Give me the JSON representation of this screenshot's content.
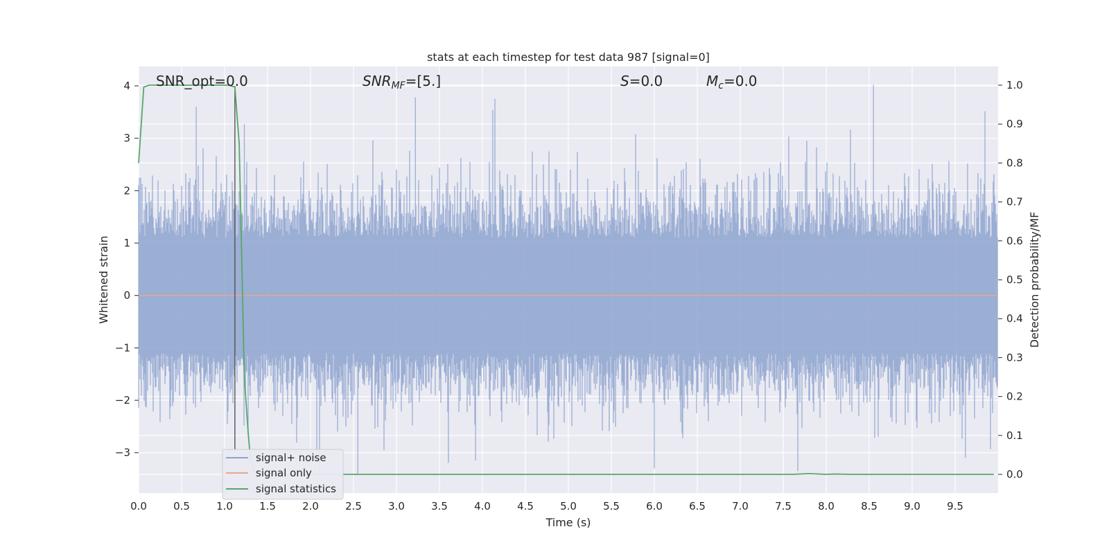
{
  "chart_data": {
    "type": "line",
    "title": "stats at each timestep for test data 987 [signal=0]",
    "xlabel": "Time (s)",
    "ylabel_left": "Whitened strain",
    "ylabel_right": "Detection probability/MF",
    "xlim": [
      0,
      10
    ],
    "ylim_left": [
      -3.77,
      4.37
    ],
    "ylim_right": [
      -0.048,
      1.048
    ],
    "x_ticks": [
      "0.0",
      "0.5",
      "1.0",
      "1.5",
      "2.0",
      "2.5",
      "3.0",
      "3.5",
      "4.0",
      "4.5",
      "5.0",
      "5.5",
      "6.0",
      "6.5",
      "7.0",
      "7.5",
      "8.0",
      "8.5",
      "9.0",
      "9.5"
    ],
    "y_left_ticks": [
      "4",
      "3",
      "2",
      "1",
      "0",
      "−1",
      "−2",
      "−3"
    ],
    "y_right_ticks": [
      "1.0",
      "0.9",
      "0.8",
      "0.7",
      "0.6",
      "0.5",
      "0.4",
      "0.3",
      "0.2",
      "0.1",
      "0.0"
    ],
    "grid": true,
    "legend_position": "lower-left",
    "annotations": {
      "snr_opt": "SNR_opt=0.0",
      "snr_mf_main": "SNR",
      "snr_mf_sub": "MF",
      "snr_mf_value": "=[5.]",
      "s_main": "S",
      "s_value": "=0.0",
      "mc_main": "M",
      "mc_sub": "c",
      "mc_value": "=0.0"
    },
    "vertical_marker_x": 1.12,
    "series": [
      {
        "name": "signal+ noise",
        "axis": "left",
        "color": "#8da3cf",
        "description_envelope": {
          "typical_range": [
            -1.8,
            1.8
          ],
          "max_peak": 4.0,
          "min_peak": -3.4
        }
      },
      {
        "name": "signal only",
        "axis": "left",
        "color": "#e8a68e",
        "x": [
          0,
          10
        ],
        "y": [
          0,
          0
        ]
      },
      {
        "name": "signal statistics",
        "axis": "right",
        "color": "#55a868",
        "x": [
          0.0,
          0.06,
          0.12,
          0.3,
          0.6,
          0.9,
          1.05,
          1.12,
          1.17,
          1.2,
          1.23,
          1.27,
          1.3,
          1.35,
          1.5,
          2.0,
          3.0,
          4.0,
          5.0,
          6.0,
          7.0,
          7.6,
          7.8,
          8.0,
          8.1,
          8.3,
          8.6,
          9.0,
          9.5,
          9.95
        ],
        "y": [
          0.8,
          0.995,
          1.0,
          1.0,
          1.0,
          1.0,
          1.0,
          0.995,
          0.85,
          0.55,
          0.25,
          0.12,
          0.04,
          0.005,
          0.0,
          0.0,
          0.0,
          0.0,
          0.0,
          0.0,
          0.0,
          0.0,
          0.002,
          0.0,
          0.001,
          0.0,
          0.0,
          0.0,
          0.0,
          0.0
        ]
      }
    ]
  },
  "colors": {
    "plot_bg": "#eaeaf2",
    "grid": "#ffffff",
    "noise": "#8da3cf",
    "signal_only": "#e8a68e",
    "statistics": "#55a868",
    "marker": "#4a4a4a"
  }
}
